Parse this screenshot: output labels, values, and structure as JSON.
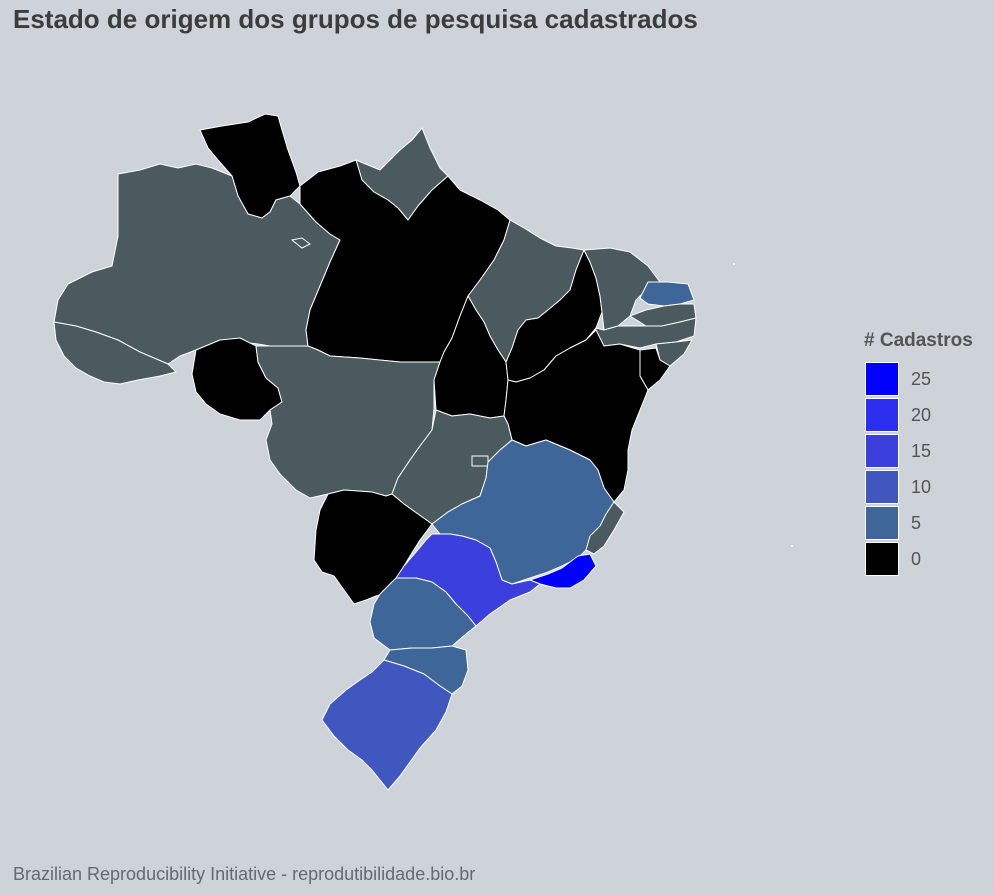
{
  "title": "Estado de origem dos grupos de pesquisa cadastrados",
  "legend": {
    "title": "# Cadastros",
    "entries": [
      {
        "label": "25",
        "value": 25,
        "color": "#0000ff"
      },
      {
        "label": "20",
        "value": 20,
        "color": "#2a2ff0"
      },
      {
        "label": "15",
        "value": 15,
        "color": "#3b40dc"
      },
      {
        "label": "10",
        "value": 10,
        "color": "#4157c0"
      },
      {
        "label": "5",
        "value": 5,
        "color": "#3e6699"
      },
      {
        "label": "0",
        "value": 0,
        "color": "#000000"
      }
    ]
  },
  "caption": "Brazilian Reproducibility Initiative - reprodutibilidade.bio.br",
  "map": {
    "region": "Brasil",
    "states": [
      {
        "uf": "RR",
        "level": 0
      },
      {
        "uf": "AP",
        "level": null
      },
      {
        "uf": "AM",
        "level": null
      },
      {
        "uf": "PA",
        "level": 0
      },
      {
        "uf": "AC",
        "level": null
      },
      {
        "uf": "RO",
        "level": 0
      },
      {
        "uf": "MT",
        "level": null
      },
      {
        "uf": "MA",
        "level": null
      },
      {
        "uf": "TO",
        "level": 0
      },
      {
        "uf": "PI",
        "level": 0
      },
      {
        "uf": "CE",
        "level": null
      },
      {
        "uf": "RN",
        "level": 5
      },
      {
        "uf": "PB",
        "level": null
      },
      {
        "uf": "PE",
        "level": null
      },
      {
        "uf": "AL",
        "level": null
      },
      {
        "uf": "SE",
        "level": 0
      },
      {
        "uf": "BA",
        "level": 0
      },
      {
        "uf": "GO",
        "level": null
      },
      {
        "uf": "DF",
        "level": null
      },
      {
        "uf": "MS",
        "level": 0
      },
      {
        "uf": "MG",
        "level": 5
      },
      {
        "uf": "ES",
        "level": null
      },
      {
        "uf": "RJ",
        "level": 25
      },
      {
        "uf": "SP",
        "level": 15
      },
      {
        "uf": "PR",
        "level": 5
      },
      {
        "uf": "SC",
        "level": 5
      },
      {
        "uf": "RS",
        "level": 10
      }
    ],
    "no_data_color": "#4a5a5e"
  }
}
